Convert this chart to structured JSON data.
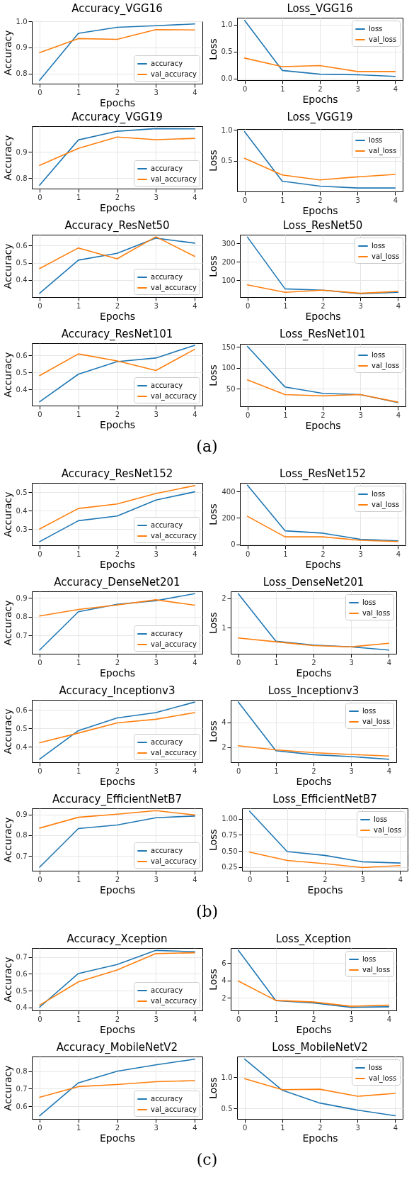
{
  "chart_data": [
    {
      "type": "line",
      "title": "Accuracy_VGG16",
      "xlabel": "Epochs",
      "ylabel": "Accuracy",
      "x": [
        0,
        1,
        2,
        3,
        4
      ],
      "xlim": [
        -0.2,
        4.2
      ],
      "xticks": [
        0,
        1,
        2,
        3,
        4
      ],
      "ylim": [
        0.762,
        1.0
      ],
      "yticks": [
        0.8,
        0.9,
        {
          "value": 1,
          "label": "1.0"
        }
      ],
      "grid": true,
      "legend": "bottom right",
      "series": [
        {
          "name": "accuracy",
          "color": "#1f77b4",
          "values": [
            0.775,
            0.954,
            0.977,
            0.983,
            0.99
          ]
        },
        {
          "name": "val_accuracy",
          "color": "#ff7f0e",
          "values": [
            0.88,
            0.934,
            0.931,
            0.968,
            0.967
          ]
        }
      ]
    },
    {
      "type": "line",
      "title": "Loss_VGG16",
      "xlabel": "Epochs",
      "ylabel": "Loss",
      "x": [
        0,
        1,
        2,
        3,
        4
      ],
      "xlim": [
        -0.2,
        4.2
      ],
      "xticks": [
        0,
        1,
        2,
        3,
        4
      ],
      "ylim": [
        -0.03,
        1.13
      ],
      "yticks": [
        {
          "value": 0,
          "label": "0.0"
        },
        0.5,
        {
          "value": 1,
          "label": "1.0"
        }
      ],
      "grid": true,
      "legend": "top right",
      "series": [
        {
          "name": "loss",
          "color": "#1f77b4",
          "values": [
            1.08,
            0.15,
            0.08,
            0.07,
            0.04
          ]
        },
        {
          "name": "val_loss",
          "color": "#ff7f0e",
          "values": [
            0.38,
            0.22,
            0.24,
            0.13,
            0.13
          ]
        }
      ]
    },
    {
      "type": "line",
      "title": "Accuracy_VGG19",
      "xlabel": "Epochs",
      "ylabel": "Accuracy",
      "x": [
        0,
        1,
        2,
        3,
        4
      ],
      "xlim": [
        -0.2,
        4.2
      ],
      "xticks": [
        0,
        1,
        2,
        3,
        4
      ],
      "ylim": [
        0.761,
        0.997
      ],
      "yticks": [
        0.8,
        0.9
      ],
      "grid": true,
      "legend": "bottom right",
      "series": [
        {
          "name": "accuracy",
          "color": "#1f77b4",
          "values": [
            0.774,
            0.945,
            0.978,
            0.988,
            0.987
          ]
        },
        {
          "name": "val_accuracy",
          "color": "#ff7f0e",
          "values": [
            0.849,
            0.913,
            0.956,
            0.946,
            0.951
          ]
        }
      ]
    },
    {
      "type": "line",
      "title": "Loss_VGG19",
      "xlabel": "Epochs",
      "ylabel": "Loss",
      "x": [
        0,
        1,
        2,
        3,
        4
      ],
      "xlim": [
        -0.2,
        4.2
      ],
      "xticks": [
        0,
        1,
        2,
        3,
        4
      ],
      "ylim": [
        0.004,
        1.013
      ],
      "yticks": [
        0.5,
        {
          "value": 1,
          "label": "1.0"
        }
      ],
      "grid": true,
      "legend": "top right",
      "series": [
        {
          "name": "loss",
          "color": "#1f77b4",
          "values": [
            0.97,
            0.17,
            0.09,
            0.06,
            0.06
          ]
        },
        {
          "name": "val_loss",
          "color": "#ff7f0e",
          "values": [
            0.54,
            0.27,
            0.19,
            0.24,
            0.28
          ]
        }
      ]
    },
    {
      "type": "line",
      "title": "Accuracy_ResNet50",
      "xlabel": "Epochs",
      "ylabel": "Accuracy",
      "x": [
        0,
        1,
        2,
        3,
        4
      ],
      "xlim": [
        -0.2,
        4.2
      ],
      "xticks": [
        0,
        1,
        2,
        3,
        4
      ],
      "ylim": [
        0.3,
        0.663
      ],
      "yticks": [
        0.4,
        0.5,
        0.6
      ],
      "grid": true,
      "legend": "bottom right",
      "series": [
        {
          "name": "accuracy",
          "color": "#1f77b4",
          "values": [
            0.322,
            0.515,
            0.555,
            0.643,
            0.614
          ]
        },
        {
          "name": "val_accuracy",
          "color": "#ff7f0e",
          "values": [
            0.466,
            0.586,
            0.523,
            0.651,
            0.537
          ]
        }
      ]
    },
    {
      "type": "line",
      "title": "Loss_ResNet50",
      "xlabel": "Epochs",
      "ylabel": "Loss",
      "x": [
        0,
        1,
        2,
        3,
        4
      ],
      "xlim": [
        -0.2,
        4.2
      ],
      "xticks": [
        0,
        1,
        2,
        3,
        4
      ],
      "ylim": [
        7,
        348
      ],
      "yticks": [
        100,
        200,
        300
      ],
      "grid": true,
      "legend": "top right",
      "series": [
        {
          "name": "loss",
          "color": "#1f77b4",
          "values": [
            335,
            52,
            45,
            26,
            33
          ]
        },
        {
          "name": "val_loss",
          "color": "#ff7f0e",
          "values": [
            74,
            33,
            45,
            28,
            38
          ]
        }
      ]
    },
    {
      "type": "line",
      "title": "Accuracy_ResNet101",
      "xlabel": "Epochs",
      "ylabel": "Accuracy",
      "x": [
        0,
        1,
        2,
        3,
        4
      ],
      "xlim": [
        -0.2,
        4.2
      ],
      "xticks": [
        0,
        1,
        2,
        3,
        4
      ],
      "ylim": [
        0.305,
        0.671
      ],
      "yticks": [
        0.4,
        0.5,
        0.6
      ],
      "grid": true,
      "legend": "bottom right",
      "annotations": [
        "(a)"
      ],
      "series": [
        {
          "name": "accuracy",
          "color": "#1f77b4",
          "values": [
            0.327,
            0.489,
            0.563,
            0.584,
            0.659
          ]
        },
        {
          "name": "val_accuracy",
          "color": "#ff7f0e",
          "values": [
            0.481,
            0.608,
            0.567,
            0.511,
            0.635
          ]
        }
      ]
    },
    {
      "type": "line",
      "title": "Loss_ResNet101",
      "xlabel": "Epochs",
      "ylabel": "Loss",
      "x": [
        0,
        1,
        2,
        3,
        4
      ],
      "xlim": [
        -0.2,
        4.2
      ],
      "xticks": [
        0,
        1,
        2,
        3,
        4
      ],
      "ylim": [
        8,
        157
      ],
      "yticks": [
        50,
        100,
        150
      ],
      "grid": true,
      "legend": "top right",
      "series": [
        {
          "name": "loss",
          "color": "#1f77b4",
          "values": [
            151,
            54,
            39,
            36,
            17
          ]
        },
        {
          "name": "val_loss",
          "color": "#ff7f0e",
          "values": [
            71,
            36,
            33,
            36,
            18
          ]
        }
      ]
    },
    {
      "type": "line",
      "title": "Accuracy_ResNet152",
      "xlabel": "Epochs",
      "ylabel": "Accuracy",
      "x": [
        0,
        1,
        2,
        3,
        4
      ],
      "xlim": [
        -0.2,
        4.2
      ],
      "xticks": [
        0,
        1,
        2,
        3,
        4
      ],
      "ylim": [
        0.211,
        0.552
      ],
      "yticks": [
        0.3,
        0.4,
        0.5
      ],
      "grid": true,
      "legend": "bottom right",
      "series": [
        {
          "name": "accuracy",
          "color": "#1f77b4",
          "values": [
            0.231,
            0.345,
            0.371,
            0.458,
            0.503
          ]
        },
        {
          "name": "val_accuracy",
          "color": "#ff7f0e",
          "values": [
            0.3,
            0.412,
            0.437,
            0.494,
            0.537
          ]
        }
      ]
    },
    {
      "type": "line",
      "title": "Loss_ResNet152",
      "xlabel": "Epochs",
      "ylabel": "Loss",
      "x": [
        0,
        1,
        2,
        3,
        4
      ],
      "xlim": [
        -0.2,
        4.2
      ],
      "xticks": [
        0,
        1,
        2,
        3,
        4
      ],
      "ylim": [
        -8,
        466
      ],
      "yticks": [
        0,
        200,
        400
      ],
      "grid": true,
      "legend": "top right",
      "series": [
        {
          "name": "loss",
          "color": "#1f77b4",
          "values": [
            448,
            102,
            84,
            38,
            26
          ]
        },
        {
          "name": "val_loss",
          "color": "#ff7f0e",
          "values": [
            212,
            56,
            56,
            30,
            20
          ]
        }
      ]
    },
    {
      "type": "line",
      "title": "Accuracy_DenseNet201",
      "xlabel": "Epochs",
      "ylabel": "Accuracy",
      "x": [
        0,
        1,
        2,
        3,
        4
      ],
      "xlim": [
        -0.2,
        4.2
      ],
      "xticks": [
        0,
        1,
        2,
        3,
        4
      ],
      "ylim": [
        0.602,
        0.936
      ],
      "yticks": [
        0.7,
        0.8,
        0.9
      ],
      "grid": true,
      "legend": "bottom right",
      "series": [
        {
          "name": "accuracy",
          "color": "#1f77b4",
          "values": [
            0.622,
            0.827,
            0.867,
            0.886,
            0.924
          ]
        },
        {
          "name": "val_accuracy",
          "color": "#ff7f0e",
          "values": [
            0.804,
            0.839,
            0.863,
            0.891,
            0.862
          ]
        }
      ]
    },
    {
      "type": "line",
      "title": "Loss_DenseNet201",
      "xlabel": "Epochs",
      "ylabel": "Loss",
      "x": [
        0,
        1,
        2,
        3,
        4
      ],
      "xlim": [
        -0.2,
        4.2
      ],
      "xticks": [
        0,
        1,
        2,
        3,
        4
      ],
      "ylim": [
        0.115,
        2.23
      ],
      "yticks": [
        1,
        2
      ],
      "grid": true,
      "legend": "top right",
      "series": [
        {
          "name": "loss",
          "color": "#1f77b4",
          "values": [
            2.15,
            0.54,
            0.41,
            0.35,
            0.24
          ]
        },
        {
          "name": "val_loss",
          "color": "#ff7f0e",
          "values": [
            0.65,
            0.52,
            0.39,
            0.35,
            0.47
          ]
        }
      ]
    },
    {
      "type": "line",
      "title": "Accuracy_Inceptionv3",
      "xlabel": "Epochs",
      "ylabel": "Accuracy",
      "x": [
        0,
        1,
        2,
        3,
        4
      ],
      "xlim": [
        -0.2,
        4.2
      ],
      "xticks": [
        0,
        1,
        2,
        3,
        4
      ],
      "ylim": [
        0.317,
        0.655
      ],
      "yticks": [
        0.4,
        0.5,
        0.6
      ],
      "grid": true,
      "legend": "bottom right",
      "series": [
        {
          "name": "accuracy",
          "color": "#1f77b4",
          "values": [
            0.334,
            0.488,
            0.557,
            0.586,
            0.643
          ]
        },
        {
          "name": "val_accuracy",
          "color": "#ff7f0e",
          "values": [
            0.423,
            0.475,
            0.53,
            0.55,
            0.586
          ]
        }
      ]
    },
    {
      "type": "line",
      "title": "Loss_Inceptionv3",
      "xlabel": "Epochs",
      "ylabel": "Loss",
      "x": [
        0,
        1,
        2,
        3,
        4
      ],
      "xlim": [
        -0.2,
        4.2
      ],
      "xticks": [
        0,
        1,
        2,
        3,
        4
      ],
      "ylim": [
        0.77,
        5.83
      ],
      "yticks": [
        2,
        4
      ],
      "grid": true,
      "legend": "top right",
      "series": [
        {
          "name": "loss",
          "color": "#1f77b4",
          "values": [
            5.66,
            1.7,
            1.38,
            1.23,
            1.01
          ]
        },
        {
          "name": "val_loss",
          "color": "#ff7f0e",
          "values": [
            2.11,
            1.78,
            1.55,
            1.4,
            1.27
          ]
        }
      ]
    },
    {
      "type": "line",
      "title": "Accuracy_EfficientNetB7",
      "xlabel": "Epochs",
      "ylabel": "Accuracy",
      "x": [
        0,
        1,
        2,
        3,
        4
      ],
      "xlim": [
        -0.2,
        4.2
      ],
      "xticks": [
        0,
        1,
        2,
        3,
        4
      ],
      "ylim": [
        0.629,
        0.929
      ],
      "yticks": [
        0.7,
        0.8,
        0.9
      ],
      "grid": true,
      "legend": "bottom right",
      "annotations": [
        "(b)"
      ],
      "series": [
        {
          "name": "accuracy",
          "color": "#1f77b4",
          "values": [
            0.646,
            0.832,
            0.849,
            0.884,
            0.892
          ]
        },
        {
          "name": "val_accuracy",
          "color": "#ff7f0e",
          "values": [
            0.834,
            0.886,
            0.901,
            0.918,
            0.897
          ]
        }
      ]
    },
    {
      "type": "line",
      "title": "Loss_EfficientNetB7",
      "xlabel": "Epochs",
      "ylabel": "Loss",
      "x": [
        0,
        1,
        2,
        3,
        4
      ],
      "xlim": [
        -0.2,
        4.2
      ],
      "xticks": [
        0,
        1,
        2,
        3,
        4
      ],
      "ylim": [
        0.19,
        1.165
      ],
      "yticks": [
        {
          "value": 0.25,
          "label": "0.25"
        },
        {
          "value": 0.5,
          "label": "0.50"
        },
        {
          "value": 0.75,
          "label": "0.75"
        },
        {
          "value": 1,
          "label": "1.00"
        }
      ],
      "grid": true,
      "legend": "top right",
      "series": [
        {
          "name": "loss",
          "color": "#1f77b4",
          "values": [
            1.12,
            0.49,
            0.43,
            0.33,
            0.31
          ]
        },
        {
          "name": "val_loss",
          "color": "#ff7f0e",
          "values": [
            0.48,
            0.35,
            0.3,
            0.24,
            0.27
          ]
        }
      ]
    },
    {
      "type": "line",
      "title": "Accuracy_Xception",
      "xlabel": "Epochs",
      "ylabel": "Accuracy",
      "x": [
        0,
        1,
        2,
        3,
        4
      ],
      "xlim": [
        -0.2,
        4.2
      ],
      "xticks": [
        0,
        1,
        2,
        3,
        4
      ],
      "ylim": [
        0.383,
        0.753
      ],
      "yticks": [
        0.4,
        0.5,
        0.6,
        0.7
      ],
      "grid": true,
      "legend": "bottom right",
      "series": [
        {
          "name": "accuracy",
          "color": "#1f77b4",
          "values": [
            0.402,
            0.602,
            0.655,
            0.739,
            0.731
          ]
        },
        {
          "name": "val_accuracy",
          "color": "#ff7f0e",
          "values": [
            0.414,
            0.552,
            0.623,
            0.72,
            0.725
          ]
        }
      ]
    },
    {
      "type": "line",
      "title": "Loss_Xception",
      "xlabel": "Epochs",
      "ylabel": "Loss",
      "x": [
        0,
        1,
        2,
        3,
        4
      ],
      "xlim": [
        -0.2,
        4.2
      ],
      "xticks": [
        0,
        1,
        2,
        3,
        4
      ],
      "ylim": [
        0.55,
        7.73
      ],
      "yticks": [
        2,
        4,
        6
      ],
      "grid": true,
      "legend": "top right",
      "series": [
        {
          "name": "loss",
          "color": "#1f77b4",
          "values": [
            7.48,
            1.67,
            1.42,
            0.91,
            0.97
          ]
        },
        {
          "name": "val_loss",
          "color": "#ff7f0e",
          "values": [
            3.94,
            1.7,
            1.52,
            1.03,
            1.15
          ]
        }
      ]
    },
    {
      "type": "line",
      "title": "Accuracy_MobileNetV2",
      "xlabel": "Epochs",
      "ylabel": "Accuracy",
      "x": [
        0,
        1,
        2,
        3,
        4
      ],
      "xlim": [
        -0.2,
        4.2
      ],
      "xticks": [
        0,
        1,
        2,
        3,
        4
      ],
      "ylim": [
        0.527,
        0.884
      ],
      "yticks": [
        0.6,
        0.7,
        0.8
      ],
      "grid": true,
      "legend": "bottom right",
      "annotations": [
        "(c)"
      ],
      "series": [
        {
          "name": "accuracy",
          "color": "#1f77b4",
          "values": [
            0.545,
            0.733,
            0.8,
            0.836,
            0.869
          ]
        },
        {
          "name": "val_accuracy",
          "color": "#ff7f0e",
          "values": [
            0.651,
            0.712,
            0.724,
            0.74,
            0.746
          ]
        }
      ]
    },
    {
      "type": "line",
      "title": "Loss_MobileNetV2",
      "xlabel": "Epochs",
      "ylabel": "Loss",
      "x": [
        0,
        1,
        2,
        3,
        4
      ],
      "xlim": [
        -0.2,
        4.2
      ],
      "xticks": [
        0,
        1,
        2,
        3,
        4
      ],
      "ylim": [
        0.33,
        1.33
      ],
      "yticks": [
        0.5,
        {
          "value": 1,
          "label": "1.0"
        }
      ],
      "grid": true,
      "legend": "top right",
      "series": [
        {
          "name": "loss",
          "color": "#1f77b4",
          "values": [
            1.29,
            0.79,
            0.584,
            0.471,
            0.382
          ]
        },
        {
          "name": "val_loss",
          "color": "#ff7f0e",
          "values": [
            0.975,
            0.798,
            0.806,
            0.693,
            0.739
          ]
        }
      ]
    }
  ]
}
